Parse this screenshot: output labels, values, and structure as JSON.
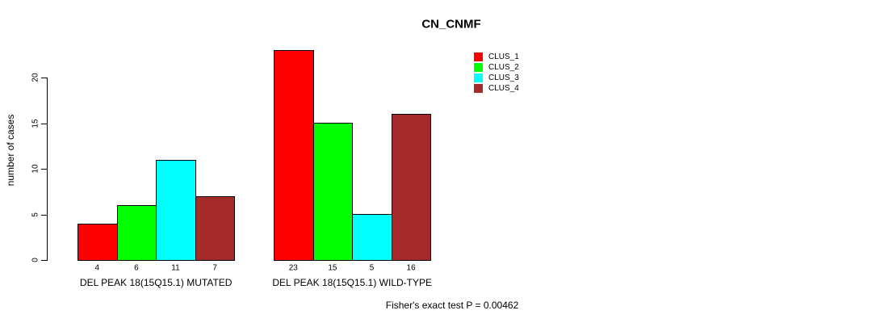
{
  "chart_data": {
    "type": "bar",
    "title": "CN_CNMF",
    "ylabel": "number of cases",
    "xlabel": "",
    "categories": [
      "DEL PEAK 18(15Q15.1) MUTATED",
      "DEL PEAK 18(15Q15.1) WILD-TYPE"
    ],
    "series": [
      {
        "name": "CLUS_1",
        "color": "#ff0000",
        "values": [
          4,
          23
        ]
      },
      {
        "name": "CLUS_2",
        "color": "#00ff00",
        "values": [
          6,
          15
        ]
      },
      {
        "name": "CLUS_3",
        "color": "#00ffff",
        "values": [
          11,
          5
        ]
      },
      {
        "name": "CLUS_4",
        "color": "#a52a2a",
        "values": [
          7,
          16
        ]
      }
    ],
    "yticks": [
      0,
      5,
      10,
      15,
      20
    ],
    "ylim": [
      0,
      23
    ],
    "bar_value_labels_shown": true,
    "grid": false,
    "legend_position": "top-right-inside",
    "annotation": "Fisher's exact test P = 0.00462"
  }
}
